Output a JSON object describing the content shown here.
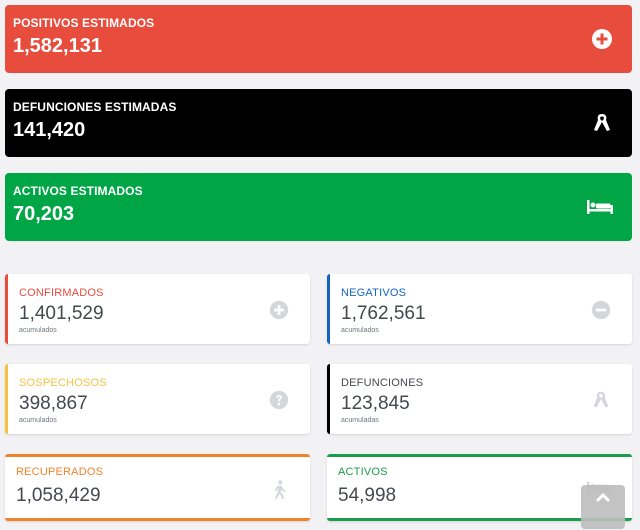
{
  "estimated": {
    "positivos": {
      "label": "POSITIVOS ESTIMADOS",
      "value": "1,582,131",
      "color": "#e74c3c",
      "icon": "plus-circle-icon"
    },
    "defunciones": {
      "label": "DEFUNCIONES ESTIMADAS",
      "value": "141,420",
      "color": "#000000",
      "icon": "ribbon-icon"
    },
    "activos": {
      "label": "ACTIVOS ESTIMADOS",
      "value": "70,203",
      "color": "#00a546",
      "icon": "bed-icon"
    }
  },
  "cards": {
    "confirmados": {
      "label": "CONFIRMADOS",
      "value": "1,401,529",
      "sub": "acumulados",
      "accent": "#e74c3c",
      "icon": "plus-circle-icon"
    },
    "negativos": {
      "label": "NEGATIVOS",
      "value": "1,762,561",
      "sub": "acumulados",
      "accent": "#1565c0",
      "icon": "minus-circle-icon"
    },
    "sospechosos": {
      "label": "SOSPECHOSOS",
      "value": "398,867",
      "sub": "acumulados",
      "accent": "#f5c242",
      "icon": "question-circle-icon"
    },
    "defunciones": {
      "label": "DEFUNCIONES",
      "value": "123,845",
      "sub": "acumuladas",
      "accent": "#000000",
      "icon": "ribbon-icon"
    },
    "recuperados": {
      "label": "RECUPERADOS",
      "value": "1,058,429",
      "accent": "#f0832a",
      "icon": "walking-icon"
    },
    "activos": {
      "label": "ACTIVOS",
      "value": "54,998",
      "accent": "#1b9e4b",
      "icon": "bed-icon"
    }
  },
  "scroll_top": {
    "icon": "chevron-up-icon"
  }
}
